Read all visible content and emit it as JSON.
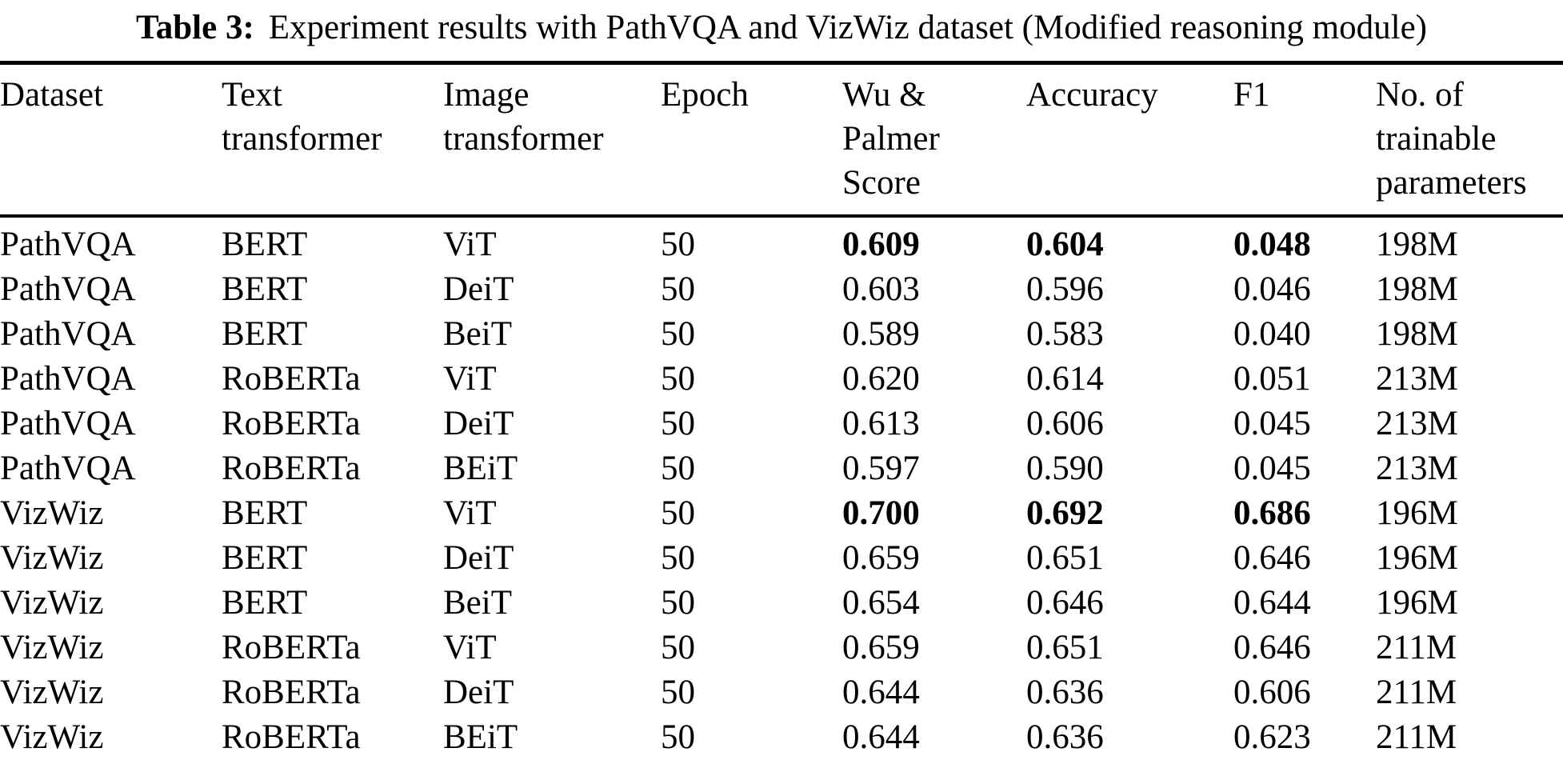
{
  "caption": {
    "label": "Table 3:",
    "text": "Experiment results with PathVQA and VizWiz dataset (Modified reasoning module)"
  },
  "table": {
    "columns": [
      {
        "key": "dataset",
        "label": "Dataset"
      },
      {
        "key": "text-transformer",
        "label": "Text transformer"
      },
      {
        "key": "image-transformer",
        "label": "Image transformer"
      },
      {
        "key": "epoch",
        "label": "Epoch"
      },
      {
        "key": "wu-palmer-score",
        "label": "Wu & Palmer Score"
      },
      {
        "key": "accuracy",
        "label": "Accuracy"
      },
      {
        "key": "f1",
        "label": "F1"
      },
      {
        "key": "trainable-parameters",
        "label": "No. of trainable parameters"
      }
    ],
    "rows": [
      {
        "cells": [
          "PathVQA",
          "BERT",
          "ViT",
          "50",
          "0.609",
          "0.604",
          "0.048",
          "198M"
        ],
        "bold": [
          4,
          5,
          6
        ]
      },
      {
        "cells": [
          "PathVQA",
          "BERT",
          "DeiT",
          "50",
          "0.603",
          "0.596",
          "0.046",
          "198M"
        ],
        "bold": []
      },
      {
        "cells": [
          "PathVQA",
          "BERT",
          "BeiT",
          "50",
          "0.589",
          "0.583",
          "0.040",
          "198M"
        ],
        "bold": []
      },
      {
        "cells": [
          "PathVQA",
          "RoBERTa",
          "ViT",
          "50",
          "0.620",
          "0.614",
          "0.051",
          "213M"
        ],
        "bold": []
      },
      {
        "cells": [
          "PathVQA",
          "RoBERTa",
          "DeiT",
          "50",
          "0.613",
          "0.606",
          "0.045",
          "213M"
        ],
        "bold": []
      },
      {
        "cells": [
          "PathVQA",
          "RoBERTa",
          "BEiT",
          "50",
          "0.597",
          "0.590",
          "0.045",
          "213M"
        ],
        "bold": []
      },
      {
        "cells": [
          "VizWiz",
          "BERT",
          "ViT",
          "50",
          "0.700",
          "0.692",
          "0.686",
          "196M"
        ],
        "bold": [
          4,
          5,
          6
        ]
      },
      {
        "cells": [
          "VizWiz",
          "BERT",
          "DeiT",
          "50",
          "0.659",
          "0.651",
          "0.646",
          "196M"
        ],
        "bold": []
      },
      {
        "cells": [
          "VizWiz",
          "BERT",
          "BeiT",
          "50",
          "0.654",
          "0.646",
          "0.644",
          "196M"
        ],
        "bold": []
      },
      {
        "cells": [
          "VizWiz",
          "RoBERTa",
          "ViT",
          "50",
          "0.659",
          "0.651",
          "0.646",
          "211M"
        ],
        "bold": []
      },
      {
        "cells": [
          "VizWiz",
          "RoBERTa",
          "DeiT",
          "50",
          "0.644",
          "0.636",
          "0.606",
          "211M"
        ],
        "bold": []
      },
      {
        "cells": [
          "VizWiz",
          "RoBERTa",
          "BEiT",
          "50",
          "0.644",
          "0.636",
          "0.623",
          "211M"
        ],
        "bold": []
      }
    ]
  }
}
